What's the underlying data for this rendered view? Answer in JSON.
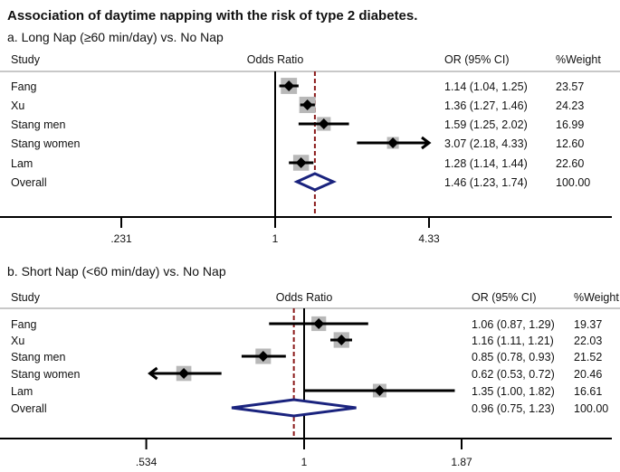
{
  "title": "Association of daytime napping with the risk of type 2 diabetes.",
  "chart_data": [
    {
      "type": "forest",
      "subtitle": "a. Long Nap (≥60 min/day) vs. No Nap",
      "headers": {
        "study": "Study",
        "or": "Odds Ratio",
        "ci": "OR (95% CI)",
        "weight": "%Weight"
      },
      "xscale": "log",
      "xlim": [
        0.231,
        4.33
      ],
      "ticks": [
        0.231,
        1,
        4.33
      ],
      "tick_labels": [
        ".231",
        "1",
        "4.33"
      ],
      "null_value": 1,
      "rows": [
        {
          "study": "Fang",
          "or": 1.14,
          "lo": 1.04,
          "hi": 1.25,
          "ci_text": "1.14 (1.04, 1.25)",
          "weight": "23.57"
        },
        {
          "study": "Xu",
          "or": 1.36,
          "lo": 1.27,
          "hi": 1.46,
          "ci_text": "1.36 (1.27, 1.46)",
          "weight": "24.23"
        },
        {
          "study": "Stang men",
          "or": 1.59,
          "lo": 1.25,
          "hi": 2.02,
          "ci_text": "1.59 (1.25, 2.02)",
          "weight": "16.99"
        },
        {
          "study": "Stang women",
          "or": 3.07,
          "lo": 2.18,
          "hi": 4.33,
          "ci_text": "3.07 (2.18, 4.33)",
          "weight": "12.60"
        },
        {
          "study": "Lam",
          "or": 1.28,
          "lo": 1.14,
          "hi": 1.44,
          "ci_text": "1.28 (1.14, 1.44)",
          "weight": "22.60"
        }
      ],
      "overall": {
        "study": "Overall",
        "or": 1.46,
        "lo": 1.23,
        "hi": 1.74,
        "ci_text": "1.46 (1.23, 1.74)",
        "weight": "100.00"
      }
    },
    {
      "type": "forest",
      "subtitle": "b. Short Nap (<60 min/day) vs. No Nap",
      "headers": {
        "study": "Study",
        "or": "Odds Ratio",
        "ci": "OR (95% CI)",
        "weight": "%Weight"
      },
      "xscale": "log",
      "xlim": [
        0.534,
        1.87
      ],
      "ticks": [
        0.534,
        1,
        1.87
      ],
      "tick_labels": [
        ".534",
        "1",
        "1.87"
      ],
      "null_value": 1,
      "rows": [
        {
          "study": "Fang",
          "or": 1.06,
          "lo": 0.87,
          "hi": 1.29,
          "ci_text": "1.06 (0.87, 1.29)",
          "weight": "19.37"
        },
        {
          "study": "Xu",
          "or": 1.16,
          "lo": 1.11,
          "hi": 1.21,
          "ci_text": "1.16 (1.11, 1.21)",
          "weight": "22.03"
        },
        {
          "study": "Stang men",
          "or": 0.85,
          "lo": 0.78,
          "hi": 0.93,
          "ci_text": "0.85 (0.78, 0.93)",
          "weight": "21.52"
        },
        {
          "study": "Stang women",
          "or": 0.62,
          "lo": 0.53,
          "hi": 0.72,
          "ci_text": "0.62 (0.53, 0.72)",
          "weight": "20.46"
        },
        {
          "study": "Lam",
          "or": 1.35,
          "lo": 1.0,
          "hi": 1.82,
          "ci_text": "1.35 (1.00, 1.82)",
          "weight": "16.61"
        }
      ],
      "overall": {
        "study": "Overall",
        "or": 0.96,
        "lo": 0.75,
        "hi": 1.23,
        "ci_text": "0.96 (0.75, 1.23)",
        "weight": "100.00"
      }
    }
  ],
  "colors": {
    "box": "#b8b8b8",
    "diamond": "#1a237e",
    "dashed": "#8b1a1a",
    "header_line": "#c8c8c8"
  }
}
